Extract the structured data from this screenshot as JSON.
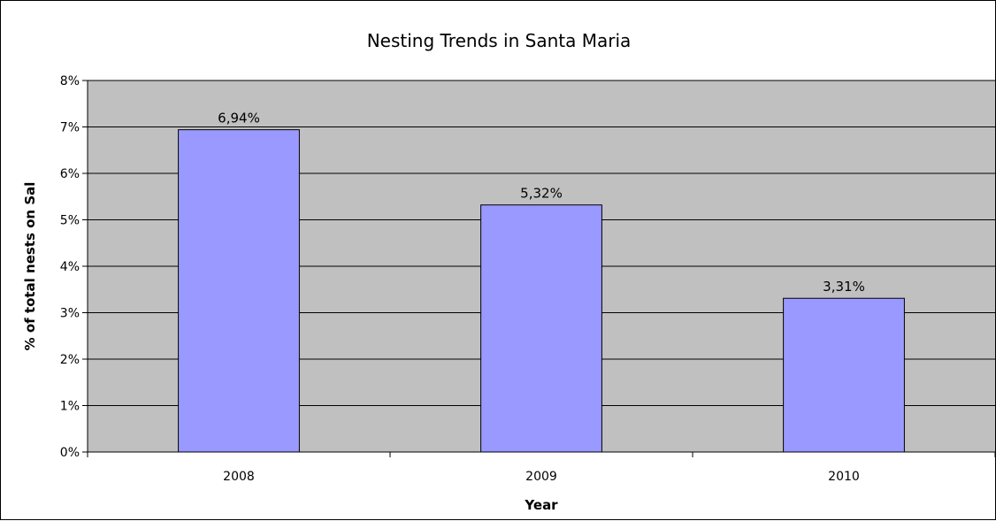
{
  "chart_data": {
    "type": "bar",
    "title": "Nesting Trends in Santa Maria",
    "xlabel": "Year",
    "ylabel": "% of total nests on Sal",
    "categories": [
      "2008",
      "2009",
      "2010"
    ],
    "values": [
      6.94,
      5.32,
      3.31
    ],
    "data_labels": [
      "6,94%",
      "5,32%",
      "3,31%"
    ],
    "ylim": [
      0,
      8
    ],
    "y_ticks": [
      0,
      1,
      2,
      3,
      4,
      5,
      6,
      7,
      8
    ],
    "y_tick_labels": [
      "0%",
      "1%",
      "2%",
      "3%",
      "4%",
      "5%",
      "6%",
      "7%",
      "8%"
    ],
    "grid": true,
    "legend": "none",
    "colors": {
      "bar_fill": "#9999ff",
      "bar_stroke": "#000000",
      "plot_background": "#c0c0c0",
      "grid": "#000000"
    }
  }
}
